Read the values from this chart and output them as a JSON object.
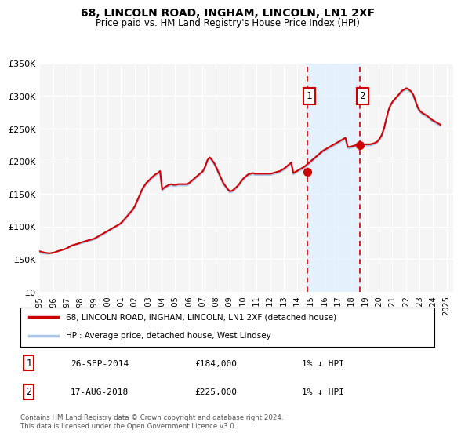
{
  "title": "68, LINCOLN ROAD, INGHAM, LINCOLN, LN1 2XF",
  "subtitle": "Price paid vs. HM Land Registry's House Price Index (HPI)",
  "ylabel": "",
  "ylim": [
    0,
    350000
  ],
  "yticks": [
    0,
    50000,
    100000,
    150000,
    200000,
    250000,
    300000,
    350000
  ],
  "ytick_labels": [
    "£0",
    "£50K",
    "£100K",
    "£150K",
    "£200K",
    "£250K",
    "£300K",
    "£350K"
  ],
  "xlim_start": 1995.0,
  "xlim_end": 2025.5,
  "xlabel_years": [
    "1995",
    "1996",
    "1997",
    "1998",
    "1999",
    "2000",
    "2001",
    "2002",
    "2003",
    "2004",
    "2005",
    "2006",
    "2007",
    "2008",
    "2009",
    "2010",
    "2011",
    "2012",
    "2013",
    "2014",
    "2015",
    "2016",
    "2017",
    "2018",
    "2019",
    "2020",
    "2021",
    "2022",
    "2023",
    "2024",
    "2025"
  ],
  "legend_line1": "68, LINCOLN ROAD, INGHAM, LINCOLN, LN1 2XF (detached house)",
  "legend_line2": "HPI: Average price, detached house, West Lindsey",
  "marker1_x": 2014.74,
  "marker1_y": 184000,
  "marker1_label": "1",
  "marker1_date": "26-SEP-2014",
  "marker1_price": "£184,000",
  "marker1_hpi": "1% ↓ HPI",
  "marker2_x": 2018.63,
  "marker2_y": 225000,
  "marker2_label": "2",
  "marker2_date": "17-AUG-2018",
  "marker2_price": "£225,000",
  "marker2_hpi": "1% ↓ HPI",
  "shade_start": 2014.74,
  "shade_end": 2018.63,
  "hpi_color": "#aec6e8",
  "price_color": "#cc0000",
  "background_color": "#ffffff",
  "plot_bg_color": "#f5f5f5",
  "grid_color": "#ffffff",
  "footer_text": "Contains HM Land Registry data © Crown copyright and database right 2024.\nThis data is licensed under the Open Government Licence v3.0.",
  "hpi_data_x": [
    1995.04,
    1995.21,
    1995.38,
    1995.54,
    1995.71,
    1995.88,
    1996.04,
    1996.21,
    1996.38,
    1996.54,
    1996.71,
    1996.88,
    1997.04,
    1997.21,
    1997.38,
    1997.54,
    1997.71,
    1997.88,
    1998.04,
    1998.21,
    1998.38,
    1998.54,
    1998.71,
    1998.88,
    1999.04,
    1999.21,
    1999.38,
    1999.54,
    1999.71,
    1999.88,
    2000.04,
    2000.21,
    2000.38,
    2000.54,
    2000.71,
    2000.88,
    2001.04,
    2001.21,
    2001.38,
    2001.54,
    2001.71,
    2001.88,
    2002.04,
    2002.21,
    2002.38,
    2002.54,
    2002.71,
    2002.88,
    2003.04,
    2003.21,
    2003.38,
    2003.54,
    2003.71,
    2003.88,
    2004.04,
    2004.21,
    2004.38,
    2004.54,
    2004.71,
    2004.88,
    2005.04,
    2005.21,
    2005.38,
    2005.54,
    2005.71,
    2005.88,
    2006.04,
    2006.21,
    2006.38,
    2006.54,
    2006.71,
    2006.88,
    2007.04,
    2007.21,
    2007.38,
    2007.54,
    2007.71,
    2007.88,
    2008.04,
    2008.21,
    2008.38,
    2008.54,
    2008.71,
    2008.88,
    2009.04,
    2009.21,
    2009.38,
    2009.54,
    2009.71,
    2009.88,
    2010.04,
    2010.21,
    2010.38,
    2010.54,
    2010.71,
    2010.88,
    2011.04,
    2011.21,
    2011.38,
    2011.54,
    2011.71,
    2011.88,
    2012.04,
    2012.21,
    2012.38,
    2012.54,
    2012.71,
    2012.88,
    2013.04,
    2013.21,
    2013.38,
    2013.54,
    2013.71,
    2013.88,
    2014.04,
    2014.21,
    2014.38,
    2014.54,
    2014.71,
    2014.88,
    2015.04,
    2015.21,
    2015.38,
    2015.54,
    2015.71,
    2015.88,
    2016.04,
    2016.21,
    2016.38,
    2016.54,
    2016.71,
    2016.88,
    2017.04,
    2017.21,
    2017.38,
    2017.54,
    2017.71,
    2017.88,
    2018.04,
    2018.21,
    2018.38,
    2018.54,
    2018.71,
    2018.88,
    2019.04,
    2019.21,
    2019.38,
    2019.54,
    2019.71,
    2019.88,
    2020.04,
    2020.21,
    2020.38,
    2020.54,
    2020.71,
    2020.88,
    2021.04,
    2021.21,
    2021.38,
    2021.54,
    2021.71,
    2021.88,
    2022.04,
    2022.21,
    2022.38,
    2022.54,
    2022.71,
    2022.88,
    2023.04,
    2023.21,
    2023.38,
    2023.54,
    2023.71,
    2023.88,
    2024.04,
    2024.21,
    2024.38,
    2024.54
  ],
  "hpi_data_y": [
    60000,
    59000,
    58500,
    58000,
    58500,
    59000,
    60000,
    61000,
    62000,
    63000,
    64000,
    65000,
    66000,
    68000,
    70000,
    71000,
    72000,
    73000,
    74000,
    75000,
    76000,
    77000,
    78000,
    79000,
    80000,
    82000,
    84000,
    86000,
    88000,
    90000,
    92000,
    94000,
    96000,
    98000,
    100000,
    102000,
    104000,
    108000,
    112000,
    116000,
    120000,
    124000,
    130000,
    138000,
    146000,
    154000,
    160000,
    165000,
    168000,
    172000,
    175000,
    178000,
    180000,
    183000,
    155000,
    158000,
    160000,
    162000,
    163000,
    162000,
    162000,
    163000,
    163000,
    163000,
    163000,
    163000,
    165000,
    168000,
    171000,
    174000,
    177000,
    180000,
    183000,
    190000,
    200000,
    204000,
    200000,
    195000,
    188000,
    180000,
    172000,
    165000,
    160000,
    155000,
    152000,
    153000,
    156000,
    159000,
    163000,
    168000,
    172000,
    175000,
    178000,
    179000,
    180000,
    179000,
    179000,
    179000,
    179000,
    179000,
    179000,
    179000,
    179000,
    180000,
    181000,
    182000,
    183000,
    185000,
    187000,
    190000,
    193000,
    196000,
    180000,
    182000,
    184000,
    186000,
    188000,
    190000,
    193000,
    196000,
    199000,
    202000,
    205000,
    208000,
    211000,
    214000,
    216000,
    218000,
    220000,
    222000,
    224000,
    226000,
    228000,
    230000,
    232000,
    234000,
    220000,
    220000,
    221000,
    222000,
    223000,
    224000,
    224000,
    224000,
    224000,
    224000,
    224000,
    225000,
    226000,
    228000,
    232000,
    238000,
    248000,
    262000,
    276000,
    285000,
    290000,
    294000,
    298000,
    302000,
    306000,
    308000,
    310000,
    308000,
    305000,
    300000,
    290000,
    280000,
    275000,
    272000,
    270000,
    268000,
    265000,
    262000,
    260000,
    258000,
    256000,
    254000
  ],
  "price_data_x": [
    1995.04,
    1995.21,
    1995.38,
    1995.54,
    1995.71,
    1995.88,
    1996.04,
    1996.21,
    1996.38,
    1996.54,
    1996.71,
    1996.88,
    1997.04,
    1997.21,
    1997.38,
    1997.54,
    1997.71,
    1997.88,
    1998.04,
    1998.21,
    1998.38,
    1998.54,
    1998.71,
    1998.88,
    1999.04,
    1999.21,
    1999.38,
    1999.54,
    1999.71,
    1999.88,
    2000.04,
    2000.21,
    2000.38,
    2000.54,
    2000.71,
    2000.88,
    2001.04,
    2001.21,
    2001.38,
    2001.54,
    2001.71,
    2001.88,
    2002.04,
    2002.21,
    2002.38,
    2002.54,
    2002.71,
    2002.88,
    2003.04,
    2003.21,
    2003.38,
    2003.54,
    2003.71,
    2003.88,
    2004.04,
    2004.21,
    2004.38,
    2004.54,
    2004.71,
    2004.88,
    2005.04,
    2005.21,
    2005.38,
    2005.54,
    2005.71,
    2005.88,
    2006.04,
    2006.21,
    2006.38,
    2006.54,
    2006.71,
    2006.88,
    2007.04,
    2007.21,
    2007.38,
    2007.54,
    2007.71,
    2007.88,
    2008.04,
    2008.21,
    2008.38,
    2008.54,
    2008.71,
    2008.88,
    2009.04,
    2009.21,
    2009.38,
    2009.54,
    2009.71,
    2009.88,
    2010.04,
    2010.21,
    2010.38,
    2010.54,
    2010.71,
    2010.88,
    2011.04,
    2011.21,
    2011.38,
    2011.54,
    2011.71,
    2011.88,
    2012.04,
    2012.21,
    2012.38,
    2012.54,
    2012.71,
    2012.88,
    2013.04,
    2013.21,
    2013.38,
    2013.54,
    2013.71,
    2013.88,
    2014.04,
    2014.21,
    2014.38,
    2014.54,
    2014.71,
    2014.88,
    2015.04,
    2015.21,
    2015.38,
    2015.54,
    2015.71,
    2015.88,
    2016.04,
    2016.21,
    2016.38,
    2016.54,
    2016.71,
    2016.88,
    2017.04,
    2017.21,
    2017.38,
    2017.54,
    2017.71,
    2017.88,
    2018.04,
    2018.21,
    2018.38,
    2018.54,
    2018.71,
    2018.88,
    2019.04,
    2019.21,
    2019.38,
    2019.54,
    2019.71,
    2019.88,
    2020.04,
    2020.21,
    2020.38,
    2020.54,
    2020.71,
    2020.88,
    2021.04,
    2021.21,
    2021.38,
    2021.54,
    2021.71,
    2021.88,
    2022.04,
    2022.21,
    2022.38,
    2022.54,
    2022.71,
    2022.88,
    2023.04,
    2023.21,
    2023.38,
    2023.54,
    2023.71,
    2023.88,
    2024.04,
    2024.21,
    2024.38,
    2024.54
  ],
  "price_data_y": [
    62000,
    61000,
    60000,
    59500,
    59000,
    59500,
    60000,
    61000,
    62500,
    63500,
    64500,
    65500,
    67000,
    69000,
    71000,
    72000,
    73000,
    74000,
    75500,
    76500,
    77500,
    78500,
    79500,
    80500,
    81500,
    83500,
    85500,
    87500,
    89500,
    91500,
    93500,
    95500,
    97500,
    99500,
    101500,
    103500,
    106000,
    110000,
    114000,
    118000,
    122000,
    126000,
    132000,
    140000,
    148000,
    156000,
    162000,
    167000,
    170000,
    174000,
    177000,
    180000,
    182000,
    185000,
    157000,
    160000,
    162000,
    164000,
    165000,
    164000,
    164000,
    165000,
    165000,
    165000,
    165000,
    165000,
    167000,
    170000,
    173000,
    176000,
    179000,
    182000,
    185000,
    192000,
    202000,
    206000,
    202000,
    197000,
    190000,
    182000,
    174000,
    167000,
    162000,
    157000,
    154000,
    155000,
    158000,
    161000,
    165000,
    170000,
    174000,
    177000,
    180000,
    181000,
    182000,
    181000,
    181000,
    181000,
    181000,
    181000,
    181000,
    181000,
    181000,
    182000,
    183000,
    184000,
    185000,
    187000,
    189000,
    192000,
    195000,
    198000,
    182000,
    184000,
    186000,
    188000,
    190000,
    192000,
    195000,
    198000,
    201000,
    204000,
    207000,
    210000,
    213000,
    216000,
    218000,
    220000,
    222000,
    224000,
    226000,
    228000,
    230000,
    232000,
    234000,
    236000,
    222000,
    222000,
    223000,
    224000,
    225000,
    226000,
    226000,
    226000,
    226000,
    226000,
    226000,
    227000,
    228000,
    230000,
    234000,
    240000,
    250000,
    264000,
    278000,
    287000,
    292000,
    296000,
    300000,
    304000,
    308000,
    310000,
    312000,
    310000,
    307000,
    302000,
    292000,
    282000,
    277000,
    274000,
    272000,
    270000,
    267000,
    264000,
    262000,
    260000,
    258000,
    256000
  ]
}
